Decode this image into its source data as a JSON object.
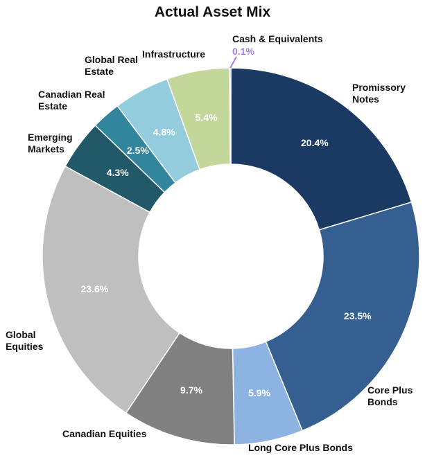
{
  "chart_data": {
    "type": "donut",
    "title": "Actual Asset Mix",
    "categories": [
      "Promissory Notes",
      "Core Plus Bonds",
      "Long Core Plus Bonds",
      "Canadian Equities",
      "Global Equities",
      "Emerging Markets",
      "Canadian Real Estate",
      "Global Real Estate",
      "Infrastructure",
      "Cash & Equivalents"
    ],
    "values": [
      20.4,
      23.5,
      5.9,
      9.7,
      23.6,
      4.3,
      2.5,
      4.8,
      5.4,
      0.1
    ],
    "value_labels": [
      "20.4%",
      "23.5%",
      "5.9%",
      "9.7%",
      "23.6%",
      "4.3%",
      "2.5%",
      "4.8%",
      "5.4%",
      "0.1%"
    ],
    "colors": [
      "#1b3a63",
      "#365f91",
      "#8db3e2",
      "#808080",
      "#bfbfbf",
      "#215968",
      "#31859c",
      "#93cddd",
      "#c4d79b",
      "#a77de8"
    ]
  }
}
